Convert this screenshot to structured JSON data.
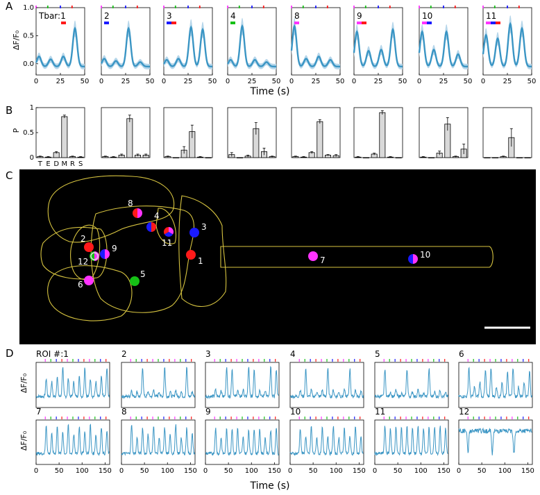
{
  "panels": {
    "A": {
      "letter": "A",
      "ylabel": "ΔF/F₀",
      "xlabel": "Time (s)",
      "yticks": [
        "1.0",
        "0.5",
        "0.0"
      ],
      "xticks": [
        "0",
        "25",
        "50"
      ]
    },
    "B": {
      "letter": "B",
      "ylabel": "P",
      "yticks": [
        "1",
        "0.5",
        "0"
      ],
      "categories": [
        "T",
        "E",
        "D",
        "M",
        "R",
        "S"
      ]
    },
    "C": {
      "letter": "C"
    },
    "D": {
      "letter": "D",
      "ylabel": "ΔF/F₀",
      "xlabel": "Time (s)",
      "xticks": [
        "0",
        "50",
        "100",
        "150"
      ]
    }
  },
  "colors": {
    "trace": "#3a95c4",
    "band": "#b6d6ea",
    "bar": "#d9d9d9",
    "red": "#ff1a1a",
    "blue": "#1a1aff",
    "green": "#16c016",
    "magenta": "#ff33ff",
    "outline": "#d7c440",
    "map_bg": "#000000"
  },
  "chart_data": [
    {
      "type": "line",
      "panel": "A",
      "ylim": [
        -0.2,
        1.0
      ],
      "xlim": [
        0,
        50
      ],
      "stimulus_markers": [
        {
          "t": 0,
          "color": "magenta"
        },
        {
          "t": 12,
          "color": "green"
        },
        {
          "t": 25,
          "color": "blue"
        },
        {
          "t": 37,
          "color": "red"
        }
      ],
      "clusters": [
        {
          "label": "Tbar:1",
          "tbar": [
            "red"
          ],
          "peaks": [
            0.18,
            0.13,
            0.18,
            0.68
          ]
        },
        {
          "label": "2",
          "tbar": [
            "blue"
          ],
          "peaks": [
            0.14,
            0.1,
            0.68,
            0.08
          ]
        },
        {
          "label": "3",
          "tbar": [
            "blue",
            "red"
          ],
          "peaks": [
            0.12,
            0.14,
            0.7,
            0.66
          ]
        },
        {
          "label": "4",
          "tbar": [
            "green"
          ],
          "peaks": [
            0.12,
            0.72,
            0.12,
            0.08
          ]
        },
        {
          "label": "8",
          "tbar": [
            "magenta"
          ],
          "peaks": [
            0.72,
            0.14,
            0.18,
            0.12
          ]
        },
        {
          "label": "9",
          "tbar": [
            "magenta",
            "red"
          ],
          "peaks": [
            0.62,
            0.28,
            0.3,
            0.66
          ]
        },
        {
          "label": "10",
          "tbar": [
            "magenta",
            "blue"
          ],
          "peaks": [
            0.62,
            0.3,
            0.62,
            0.22
          ]
        },
        {
          "label": "11",
          "tbar": [
            "magenta",
            "blue",
            "red"
          ],
          "peaks": [
            0.56,
            0.5,
            0.76,
            0.68
          ]
        }
      ]
    },
    {
      "type": "bar",
      "panel": "B",
      "categories": [
        "T",
        "E",
        "D",
        "M",
        "R",
        "S"
      ],
      "ylim": [
        0,
        1
      ],
      "series": [
        {
          "values": [
            0.02,
            0.01,
            0.1,
            0.82,
            0.02,
            0.01
          ],
          "errors": [
            0.01,
            0.01,
            0.02,
            0.03,
            0.01,
            0.01
          ]
        },
        {
          "values": [
            0.02,
            0.01,
            0.05,
            0.78,
            0.05,
            0.05
          ],
          "errors": [
            0.01,
            0.01,
            0.02,
            0.07,
            0.02,
            0.02
          ]
        },
        {
          "values": [
            0.02,
            0.0,
            0.15,
            0.52,
            0.01,
            0.0
          ],
          "errors": [
            0.01,
            0.0,
            0.07,
            0.13,
            0.01,
            0.0
          ]
        },
        {
          "values": [
            0.06,
            0.0,
            0.03,
            0.58,
            0.12,
            0.02
          ],
          "errors": [
            0.04,
            0.0,
            0.02,
            0.12,
            0.07,
            0.01
          ]
        },
        {
          "values": [
            0.02,
            0.01,
            0.1,
            0.72,
            0.05,
            0.04
          ],
          "errors": [
            0.01,
            0.01,
            0.02,
            0.04,
            0.01,
            0.02
          ]
        },
        {
          "values": [
            0.01,
            0.0,
            0.07,
            0.9,
            0.01,
            0.0
          ],
          "errors": [
            0.01,
            0.0,
            0.02,
            0.04,
            0.01,
            0.0
          ]
        },
        {
          "values": [
            0.01,
            0.0,
            0.09,
            0.67,
            0.02,
            0.17
          ],
          "errors": [
            0.01,
            0.0,
            0.04,
            0.13,
            0.01,
            0.1
          ]
        },
        {
          "values": [
            0.0,
            0.0,
            0.02,
            0.4,
            0.0,
            0.0
          ],
          "errors": [
            0.0,
            0.0,
            0.01,
            0.18,
            0.0,
            0.0
          ]
        }
      ]
    },
    {
      "type": "scatter",
      "panel": "C",
      "points": [
        {
          "label": "1",
          "colors": [
            "red"
          ]
        },
        {
          "label": "2",
          "colors": [
            "red"
          ]
        },
        {
          "label": "3",
          "colors": [
            "blue"
          ]
        },
        {
          "label": "4",
          "colors": [
            "red",
            "blue"
          ]
        },
        {
          "label": "5",
          "colors": [
            "green"
          ]
        },
        {
          "label": "6",
          "colors": [
            "magenta"
          ]
        },
        {
          "label": "7",
          "colors": [
            "magenta"
          ]
        },
        {
          "label": "8",
          "colors": [
            "magenta",
            "red"
          ]
        },
        {
          "label": "9",
          "colors": [
            "magenta",
            "blue"
          ]
        },
        {
          "label": "10",
          "colors": [
            "magenta",
            "blue"
          ]
        },
        {
          "label": "11",
          "colors": [
            "magenta",
            "blue",
            "red"
          ]
        },
        {
          "label": "12",
          "colors": [
            "magenta",
            "green"
          ]
        }
      ]
    },
    {
      "type": "line",
      "panel": "D",
      "xlim": [
        0,
        160
      ],
      "rois": [
        {
          "label": "ROI #:1",
          "pattern": [
            0.55,
            0.45,
            0.6,
            0.9
          ]
        },
        {
          "label": "2",
          "pattern": [
            0.2,
            0.15,
            0.9,
            0.15
          ]
        },
        {
          "label": "3",
          "pattern": [
            0.2,
            0.2,
            0.9,
            0.85
          ]
        },
        {
          "label": "4",
          "pattern": [
            0.2,
            0.85,
            0.2,
            0.15
          ]
        },
        {
          "label": "5",
          "pattern": [
            0.85,
            0.15,
            0.2,
            0.1
          ]
        },
        {
          "label": "6",
          "pattern": [
            0.9,
            0.3,
            0.45,
            0.8
          ]
        },
        {
          "label": "7",
          "pattern": [
            0.9,
            0.6,
            0.85,
            0.7
          ]
        },
        {
          "label": "8",
          "pattern": [
            0.9,
            0.5,
            0.8,
            0.6
          ]
        },
        {
          "label": "9",
          "pattern": [
            0.8,
            0.5,
            0.75,
            0.8
          ]
        },
        {
          "label": "10",
          "pattern": [
            0.8,
            0.55,
            0.85,
            0.5
          ]
        },
        {
          "label": "11",
          "pattern": [
            0.85,
            0.8,
            0.85,
            0.8
          ]
        },
        {
          "label": "12",
          "pattern": [
            0.1,
            0.1,
            0.1,
            0.1
          ]
        }
      ]
    }
  ]
}
